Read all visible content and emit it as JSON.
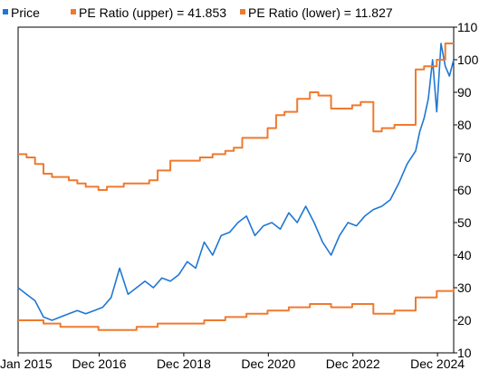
{
  "chart_data": {
    "type": "line",
    "title": "",
    "xlabel": "",
    "ylabel": "",
    "x_ticks": [
      "Jan 2015",
      "Dec 2016",
      "Dec 2018",
      "Dec 2020",
      "Dec 2022",
      "Dec 2024"
    ],
    "x_tick_positions": [
      2015.0,
      2016.917,
      2018.917,
      2020.917,
      2022.917,
      2024.917
    ],
    "xlim": [
      2015.0,
      2025.3
    ],
    "ylim": [
      10,
      110
    ],
    "y_ticks": [
      "10",
      "20",
      "30",
      "40",
      "50",
      "60",
      "70",
      "80",
      "90",
      "100",
      "110"
    ],
    "y_axis_side": "right",
    "grid": false,
    "legend": {
      "placement": "top-left",
      "entries": [
        "Price",
        "PE Ratio (upper) = 41.853",
        "PE Ratio (lower) = 11.827"
      ]
    },
    "series": [
      {
        "name": "Price",
        "color": "#1f77d4",
        "x": [
          2015.0,
          2015.2,
          2015.4,
          2015.6,
          2015.8,
          2016.0,
          2016.2,
          2016.4,
          2016.6,
          2016.8,
          2017.0,
          2017.2,
          2017.4,
          2017.6,
          2017.8,
          2018.0,
          2018.2,
          2018.4,
          2018.6,
          2018.8,
          2019.0,
          2019.2,
          2019.4,
          2019.6,
          2019.8,
          2020.0,
          2020.2,
          2020.4,
          2020.6,
          2020.8,
          2021.0,
          2021.2,
          2021.4,
          2021.6,
          2021.8,
          2022.0,
          2022.2,
          2022.4,
          2022.6,
          2022.8,
          2023.0,
          2023.2,
          2023.4,
          2023.6,
          2023.8,
          2024.0,
          2024.2,
          2024.4,
          2024.5,
          2024.6,
          2024.7,
          2024.8,
          2024.9,
          2025.0,
          2025.1,
          2025.2,
          2025.3
        ],
        "y": [
          30,
          28,
          26,
          21,
          20,
          21,
          22,
          23,
          22,
          23,
          24,
          27,
          36,
          28,
          30,
          32,
          30,
          33,
          32,
          34,
          38,
          36,
          44,
          40,
          46,
          47,
          50,
          52,
          46,
          49,
          50,
          48,
          53,
          50,
          55,
          50,
          44,
          40,
          46,
          50,
          49,
          52,
          54,
          55,
          57,
          62,
          68,
          72,
          78,
          82,
          88,
          100,
          84,
          105,
          98,
          95,
          100
        ]
      },
      {
        "name": "PE Ratio (upper) = 41.853",
        "color": "#ef7a2f",
        "x": [
          2015.0,
          2015.2,
          2015.4,
          2015.6,
          2015.8,
          2016.0,
          2016.2,
          2016.4,
          2016.6,
          2016.9,
          2017.1,
          2017.3,
          2017.5,
          2017.8,
          2018.1,
          2018.3,
          2018.6,
          2018.9,
          2019.1,
          2019.3,
          2019.6,
          2019.9,
          2020.1,
          2020.3,
          2020.6,
          2020.9,
          2021.1,
          2021.3,
          2021.6,
          2021.9,
          2022.1,
          2022.4,
          2022.6,
          2022.9,
          2023.1,
          2023.4,
          2023.6,
          2023.9,
          2024.1,
          2024.4,
          2024.6,
          2024.9,
          2025.1,
          2025.3
        ],
        "y": [
          71,
          70,
          68,
          65,
          64,
          64,
          63,
          62,
          61,
          60,
          61,
          61,
          62,
          62,
          63,
          66,
          69,
          69,
          69,
          70,
          71,
          72,
          73,
          76,
          76,
          79,
          83,
          84,
          88,
          90,
          89,
          85,
          85,
          86,
          87,
          78,
          79,
          80,
          80,
          97,
          98,
          100,
          105,
          105
        ]
      },
      {
        "name": "PE Ratio (lower) = 11.827",
        "color": "#ef7a2f",
        "x": [
          2015.0,
          2015.3,
          2015.6,
          2016.0,
          2016.4,
          2016.9,
          2017.3,
          2017.8,
          2018.3,
          2018.9,
          2019.4,
          2019.9,
          2020.4,
          2020.9,
          2021.4,
          2021.9,
          2022.4,
          2022.9,
          2023.4,
          2023.9,
          2024.4,
          2024.9,
          2025.3
        ],
        "y": [
          20,
          20,
          19,
          18,
          18,
          17,
          17,
          18,
          19,
          19,
          20,
          21,
          22,
          23,
          24,
          25,
          24,
          25,
          22,
          23,
          27,
          29,
          30
        ]
      }
    ]
  }
}
